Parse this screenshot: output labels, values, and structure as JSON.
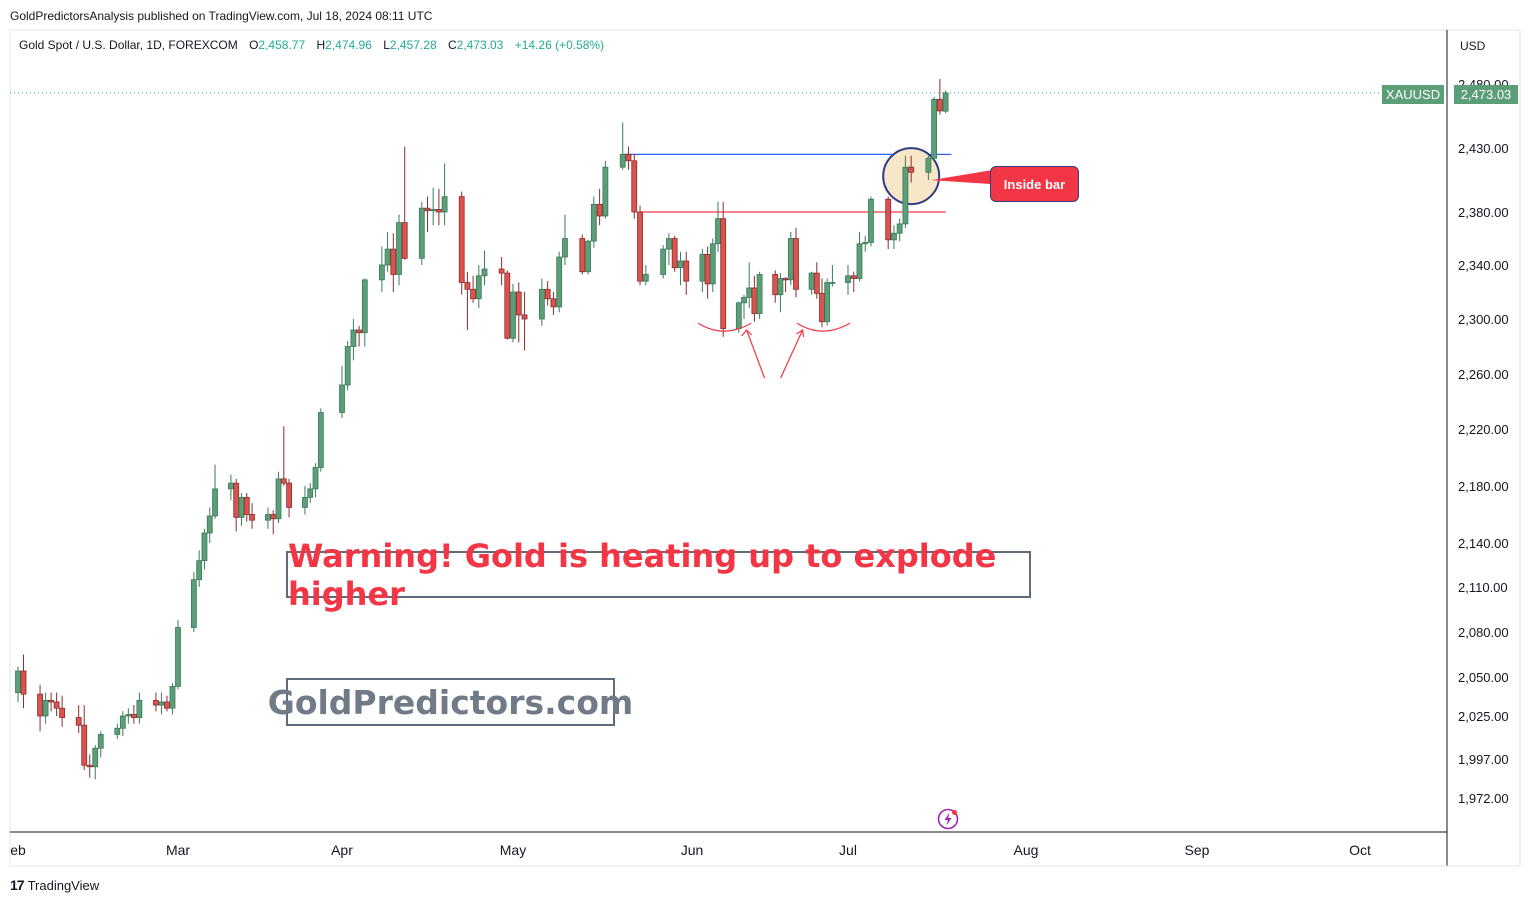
{
  "publisher": "GoldPredictorsAnalysis published on TradingView.com, Jul 18, 2024 08:11 UTC",
  "symbol_line": {
    "name": "Gold Spot / U.S. Dollar, 1D, FOREXCOM",
    "open_label": "O",
    "open": "2,458.77",
    "high_label": "H",
    "high": "2,474.96",
    "low_label": "L",
    "low": "2,457.28",
    "close_label": "C",
    "close": "2,473.03",
    "change": "+14.26 (+0.58%)"
  },
  "currency": "USD",
  "last_price": {
    "ticker": "XAUUSD",
    "value": "2,473.03",
    "color": "#5b9e78"
  },
  "annotations": {
    "headline": "Warning! Gold is heating up to explode higher",
    "website": "GoldPredictors.com",
    "callout": "Inside bar"
  },
  "footer": {
    "brand": "TradingView",
    "logo_mark": "17"
  },
  "colors": {
    "up": "#22ab94",
    "up_fill": "#5b9e78",
    "down": "#f23645",
    "down_fill": "#d9534f",
    "resistance": "#2962ff",
    "support": "#f23645",
    "accent": "#f23645"
  },
  "chart_data": {
    "type": "candlestick",
    "title": "Gold Spot / U.S. Dollar, 1D, FOREXCOM",
    "y_ticks": [
      "2,480.00",
      "2,430.00",
      "2,380.00",
      "2,340.00",
      "2,300.00",
      "2,260.00",
      "2,220.00",
      "2,180.00",
      "2,140.00",
      "2,110.00",
      "2,080.00",
      "2,050.00",
      "2,025.00",
      "1,997.00",
      "1,972.00"
    ],
    "y_tick_values": [
      2480,
      2430,
      2380,
      2340,
      2300,
      2260,
      2220,
      2180,
      2140,
      2110,
      2080,
      2050,
      2025,
      1997,
      1972
    ],
    "x_ticks": [
      {
        "label": "eb",
        "date": "2024-02-01"
      },
      {
        "label": "Mar",
        "date": "2024-03-01"
      },
      {
        "label": "Apr",
        "date": "2024-04-01"
      },
      {
        "label": "May",
        "date": "2024-05-01"
      },
      {
        "label": "Jun",
        "date": "2024-06-01"
      },
      {
        "label": "Jul",
        "date": "2024-07-01"
      },
      {
        "label": "Aug",
        "date": "2024-08-01"
      },
      {
        "label": "Sep",
        "date": "2024-09-01"
      },
      {
        "label": "Oct",
        "date": "2024-10-01"
      }
    ],
    "ohlc": [
      [
        "2024-02-01",
        2040,
        2057,
        2034,
        2054
      ],
      [
        "2024-02-02",
        2054,
        2065,
        2030,
        2039
      ],
      [
        "2024-02-05",
        2039,
        2045,
        2015,
        2025
      ],
      [
        "2024-02-06",
        2025,
        2040,
        2020,
        2035
      ],
      [
        "2024-02-07",
        2035,
        2040,
        2028,
        2034
      ],
      [
        "2024-02-08",
        2034,
        2040,
        2025,
        2030
      ],
      [
        "2024-02-09",
        2030,
        2038,
        2018,
        2024
      ],
      [
        "2024-02-12",
        2024,
        2032,
        2014,
        2019
      ],
      [
        "2024-02-13",
        2019,
        2032,
        1990,
        1993
      ],
      [
        "2024-02-14",
        1993,
        2000,
        1985,
        1992
      ],
      [
        "2024-02-15",
        1992,
        2006,
        1984,
        2004
      ],
      [
        "2024-02-16",
        2004,
        2015,
        1998,
        2013
      ],
      [
        "2024-02-19",
        2013,
        2020,
        2010,
        2017
      ],
      [
        "2024-02-20",
        2017,
        2028,
        2012,
        2025
      ],
      [
        "2024-02-21",
        2025,
        2030,
        2020,
        2026
      ],
      [
        "2024-02-22",
        2026,
        2032,
        2020,
        2024
      ],
      [
        "2024-02-23",
        2024,
        2040,
        2020,
        2035
      ],
      [
        "2024-02-26",
        2035,
        2040,
        2028,
        2032
      ],
      [
        "2024-02-27",
        2032,
        2040,
        2026,
        2034
      ],
      [
        "2024-02-28",
        2034,
        2038,
        2028,
        2030
      ],
      [
        "2024-02-29",
        2030,
        2046,
        2026,
        2044
      ],
      [
        "2024-03-01",
        2044,
        2088,
        2042,
        2083
      ],
      [
        "2024-03-04",
        2083,
        2120,
        2080,
        2115
      ],
      [
        "2024-03-05",
        2115,
        2135,
        2110,
        2128
      ],
      [
        "2024-03-06",
        2128,
        2150,
        2122,
        2147
      ],
      [
        "2024-03-07",
        2147,
        2165,
        2140,
        2159
      ],
      [
        "2024-03-08",
        2159,
        2195,
        2157,
        2178
      ],
      [
        "2024-03-11",
        2178,
        2188,
        2170,
        2182
      ],
      [
        "2024-03-12",
        2182,
        2185,
        2148,
        2158
      ],
      [
        "2024-03-13",
        2158,
        2175,
        2152,
        2172
      ],
      [
        "2024-03-14",
        2172,
        2175,
        2155,
        2160
      ],
      [
        "2024-03-15",
        2160,
        2168,
        2150,
        2156
      ],
      [
        "2024-03-18",
        2156,
        2165,
        2150,
        2160
      ],
      [
        "2024-03-19",
        2160,
        2163,
        2146,
        2157
      ],
      [
        "2024-03-20",
        2157,
        2190,
        2154,
        2185
      ],
      [
        "2024-03-21",
        2185,
        2222,
        2180,
        2182
      ],
      [
        "2024-03-22",
        2182,
        2185,
        2158,
        2165
      ],
      [
        "2024-03-25",
        2165,
        2180,
        2160,
        2172
      ],
      [
        "2024-03-26",
        2172,
        2182,
        2168,
        2178
      ],
      [
        "2024-03-27",
        2178,
        2196,
        2172,
        2193
      ],
      [
        "2024-03-28",
        2193,
        2235,
        2190,
        2232
      ],
      [
        "2024-04-01",
        2232,
        2266,
        2228,
        2252
      ],
      [
        "2024-04-02",
        2252,
        2284,
        2248,
        2280
      ],
      [
        "2024-04-03",
        2280,
        2300,
        2270,
        2292
      ],
      [
        "2024-04-04",
        2292,
        2295,
        2280,
        2290
      ],
      [
        "2024-04-05",
        2290,
        2330,
        2280,
        2329
      ],
      [
        "2024-04-08",
        2329,
        2354,
        2320,
        2340
      ],
      [
        "2024-04-09",
        2340,
        2365,
        2335,
        2352
      ],
      [
        "2024-04-10",
        2352,
        2364,
        2320,
        2333
      ],
      [
        "2024-04-11",
        2333,
        2378,
        2325,
        2372
      ],
      [
        "2024-04-12",
        2372,
        2431,
        2344,
        2345
      ],
      [
        "2024-04-15",
        2345,
        2388,
        2340,
        2383
      ],
      [
        "2024-04-16",
        2383,
        2392,
        2365,
        2381
      ],
      [
        "2024-04-17",
        2381,
        2399,
        2370,
        2382
      ],
      [
        "2024-04-18",
        2382,
        2398,
        2370,
        2380
      ],
      [
        "2024-04-19",
        2380,
        2418,
        2370,
        2392
      ],
      [
        "2024-04-22",
        2392,
        2396,
        2318,
        2327
      ],
      [
        "2024-04-23",
        2327,
        2335,
        2292,
        2322
      ],
      [
        "2024-04-24",
        2322,
        2332,
        2312,
        2315
      ],
      [
        "2024-04-25",
        2315,
        2340,
        2308,
        2332
      ],
      [
        "2024-04-26",
        2332,
        2351,
        2325,
        2337
      ],
      [
        "2024-04-29",
        2337,
        2346,
        2325,
        2334
      ],
      [
        "2024-04-30",
        2334,
        2336,
        2285,
        2286
      ],
      [
        "2024-05-01",
        2286,
        2326,
        2283,
        2320
      ],
      [
        "2024-05-02",
        2320,
        2327,
        2283,
        2303
      ],
      [
        "2024-05-03",
        2303,
        2320,
        2277,
        2300
      ],
      [
        "2024-05-06",
        2300,
        2330,
        2295,
        2322
      ],
      [
        "2024-05-07",
        2322,
        2328,
        2310,
        2315
      ],
      [
        "2024-05-08",
        2315,
        2320,
        2303,
        2309
      ],
      [
        "2024-05-09",
        2309,
        2350,
        2305,
        2346
      ],
      [
        "2024-05-10",
        2346,
        2378,
        2340,
        2360
      ],
      [
        "2024-05-13",
        2360,
        2363,
        2333,
        2335
      ],
      [
        "2024-05-14",
        2335,
        2359,
        2333,
        2358
      ],
      [
        "2024-05-15",
        2358,
        2392,
        2353,
        2386
      ],
      [
        "2024-05-16",
        2386,
        2398,
        2370,
        2377
      ],
      [
        "2024-05-17",
        2377,
        2420,
        2375,
        2415
      ],
      [
        "2024-05-20",
        2415,
        2450,
        2413,
        2425
      ],
      [
        "2024-05-21",
        2425,
        2431,
        2413,
        2420
      ],
      [
        "2024-05-22",
        2420,
        2425,
        2375,
        2380
      ],
      [
        "2024-05-23",
        2380,
        2385,
        2325,
        2328
      ],
      [
        "2024-05-24",
        2328,
        2340,
        2325,
        2333
      ],
      [
        "2024-05-27",
        2333,
        2355,
        2330,
        2352
      ],
      [
        "2024-05-28",
        2352,
        2364,
        2340,
        2360
      ],
      [
        "2024-05-29",
        2360,
        2362,
        2335,
        2338
      ],
      [
        "2024-05-30",
        2338,
        2350,
        2325,
        2343
      ],
      [
        "2024-05-31",
        2343,
        2350,
        2318,
        2328
      ],
      [
        "2024-06-03",
        2328,
        2352,
        2320,
        2348
      ],
      [
        "2024-06-04",
        2348,
        2354,
        2315,
        2326
      ],
      [
        "2024-06-05",
        2326,
        2360,
        2320,
        2356
      ],
      [
        "2024-06-06",
        2356,
        2388,
        2350,
        2375
      ],
      [
        "2024-06-07",
        2375,
        2388,
        2287,
        2293
      ],
      [
        "2024-06-10",
        2293,
        2313,
        2290,
        2312
      ],
      [
        "2024-06-11",
        2312,
        2318,
        2300,
        2316
      ],
      [
        "2024-06-12",
        2316,
        2342,
        2308,
        2323
      ],
      [
        "2024-06-13",
        2323,
        2332,
        2298,
        2304
      ],
      [
        "2024-06-14",
        2304,
        2335,
        2300,
        2333
      ],
      [
        "2024-06-17",
        2333,
        2336,
        2312,
        2318
      ],
      [
        "2024-06-18",
        2318,
        2334,
        2305,
        2330
      ],
      [
        "2024-06-19",
        2330,
        2331,
        2320,
        2329
      ],
      [
        "2024-06-20",
        2329,
        2365,
        2325,
        2360
      ],
      [
        "2024-06-21",
        2360,
        2368,
        2316,
        2322
      ],
      [
        "2024-06-24",
        2322,
        2335,
        2318,
        2334
      ],
      [
        "2024-06-25",
        2334,
        2342,
        2315,
        2319
      ],
      [
        "2024-06-26",
        2319,
        2330,
        2294,
        2298
      ],
      [
        "2024-06-27",
        2298,
        2330,
        2295,
        2327
      ],
      [
        "2024-06-28",
        2327,
        2340,
        2324,
        2327
      ],
      [
        "2024-07-01",
        2327,
        2340,
        2318,
        2332
      ],
      [
        "2024-07-02",
        2332,
        2335,
        2320,
        2330
      ],
      [
        "2024-07-03",
        2330,
        2365,
        2328,
        2356
      ],
      [
        "2024-07-04",
        2356,
        2362,
        2350,
        2357
      ],
      [
        "2024-07-05",
        2357,
        2392,
        2354,
        2390
      ],
      [
        "2024-07-08",
        2390,
        2392,
        2352,
        2359
      ],
      [
        "2024-07-09",
        2359,
        2370,
        2352,
        2364
      ],
      [
        "2024-07-10",
        2364,
        2375,
        2358,
        2371
      ],
      [
        "2024-07-11",
        2371,
        2424,
        2368,
        2415
      ],
      [
        "2024-07-12",
        2415,
        2424,
        2403,
        2411
      ],
      [
        "2024-07-15",
        2411,
        2424,
        2405,
        2422
      ],
      [
        "2024-07-16",
        2422,
        2470,
        2420,
        2468
      ],
      [
        "2024-07-17",
        2468,
        2484,
        2456,
        2459
      ],
      [
        "2024-07-18",
        2458.77,
        2474.96,
        2457.28,
        2473.03
      ]
    ],
    "levels": [
      {
        "type": "resistance",
        "value": 2425,
        "from": "2024-05-20",
        "to": "2024-07-19",
        "color": "#2962ff"
      },
      {
        "type": "support",
        "value": 2380,
        "from": "2024-05-23",
        "to": "2024-07-18",
        "color": "#f23645"
      }
    ],
    "highlight": {
      "date": "2024-07-12",
      "label": "Inside bar"
    },
    "pattern_marks": [
      {
        "date": "2024-06-07"
      },
      {
        "date": "2024-06-26"
      }
    ]
  }
}
